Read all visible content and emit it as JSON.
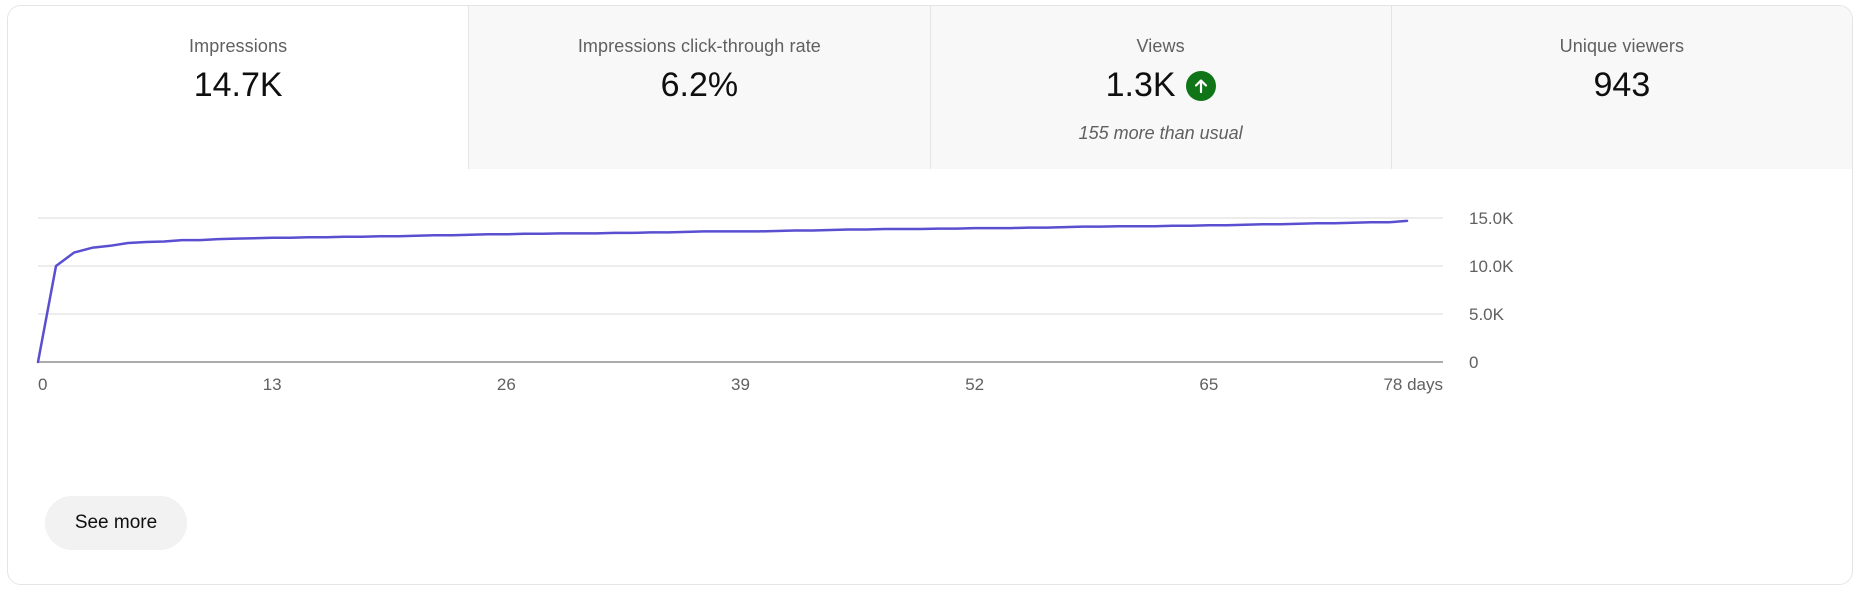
{
  "tabs": [
    {
      "title": "Impressions",
      "value": "14.7K",
      "note": "",
      "active": true
    },
    {
      "title": "Impressions click-through rate",
      "value": "6.2%",
      "note": "",
      "active": false
    },
    {
      "title": "Views",
      "value": "1.3K",
      "note": "155 more than usual",
      "active": false,
      "trend_icon": "arrow-up-icon",
      "trend_color": "#107516"
    },
    {
      "title": "Unique viewers",
      "value": "943",
      "note": "",
      "active": false
    }
  ],
  "chart_data": {
    "type": "line",
    "series": [
      {
        "x": [
          0,
          1,
          2,
          3,
          4,
          5,
          6,
          7,
          8,
          9,
          10,
          11,
          12,
          13,
          14,
          15,
          16,
          17,
          18,
          19,
          20,
          21,
          22,
          23,
          24,
          25,
          26,
          27,
          28,
          29,
          30,
          31,
          32,
          33,
          34,
          35,
          36,
          37,
          38,
          39,
          40,
          41,
          42,
          43,
          44,
          45,
          46,
          47,
          48,
          49,
          50,
          51,
          52,
          53,
          54,
          55,
          56,
          57,
          58,
          59,
          60,
          61,
          62,
          63,
          64,
          65,
          66,
          67,
          68,
          69,
          70,
          71,
          72,
          73,
          74,
          75,
          76
        ],
        "values": [
          0,
          10000,
          11400,
          11900,
          12100,
          12400,
          12500,
          12550,
          12700,
          12700,
          12800,
          12850,
          12900,
          12950,
          12950,
          13000,
          13000,
          13050,
          13050,
          13100,
          13100,
          13150,
          13200,
          13200,
          13250,
          13300,
          13300,
          13350,
          13350,
          13400,
          13400,
          13400,
          13450,
          13450,
          13500,
          13500,
          13550,
          13600,
          13600,
          13600,
          13600,
          13650,
          13700,
          13700,
          13750,
          13800,
          13800,
          13850,
          13850,
          13850,
          13900,
          13900,
          13950,
          13950,
          13950,
          14000,
          14000,
          14050,
          14100,
          14100,
          14150,
          14150,
          14150,
          14200,
          14200,
          14250,
          14250,
          14300,
          14350,
          14350,
          14400,
          14450,
          14450,
          14500,
          14550,
          14550,
          14700
        ]
      }
    ],
    "x_ticks": [
      "0",
      "13",
      "26",
      "39",
      "52",
      "65",
      "78 days"
    ],
    "x_tick_values": [
      0,
      13,
      26,
      39,
      52,
      65,
      78
    ],
    "y_ticks": [
      "15.0K",
      "10.0K",
      "5.0K",
      "0"
    ],
    "y_tick_values": [
      15000,
      10000,
      5000,
      0
    ],
    "xlim": [
      0,
      78
    ],
    "ylim": [
      0,
      15000
    ],
    "grid": true,
    "line_color": "#5a4fd0",
    "grid_color": "#e5e5e5",
    "axis_color": "#909090"
  },
  "actions": {
    "see_more": "See more"
  }
}
